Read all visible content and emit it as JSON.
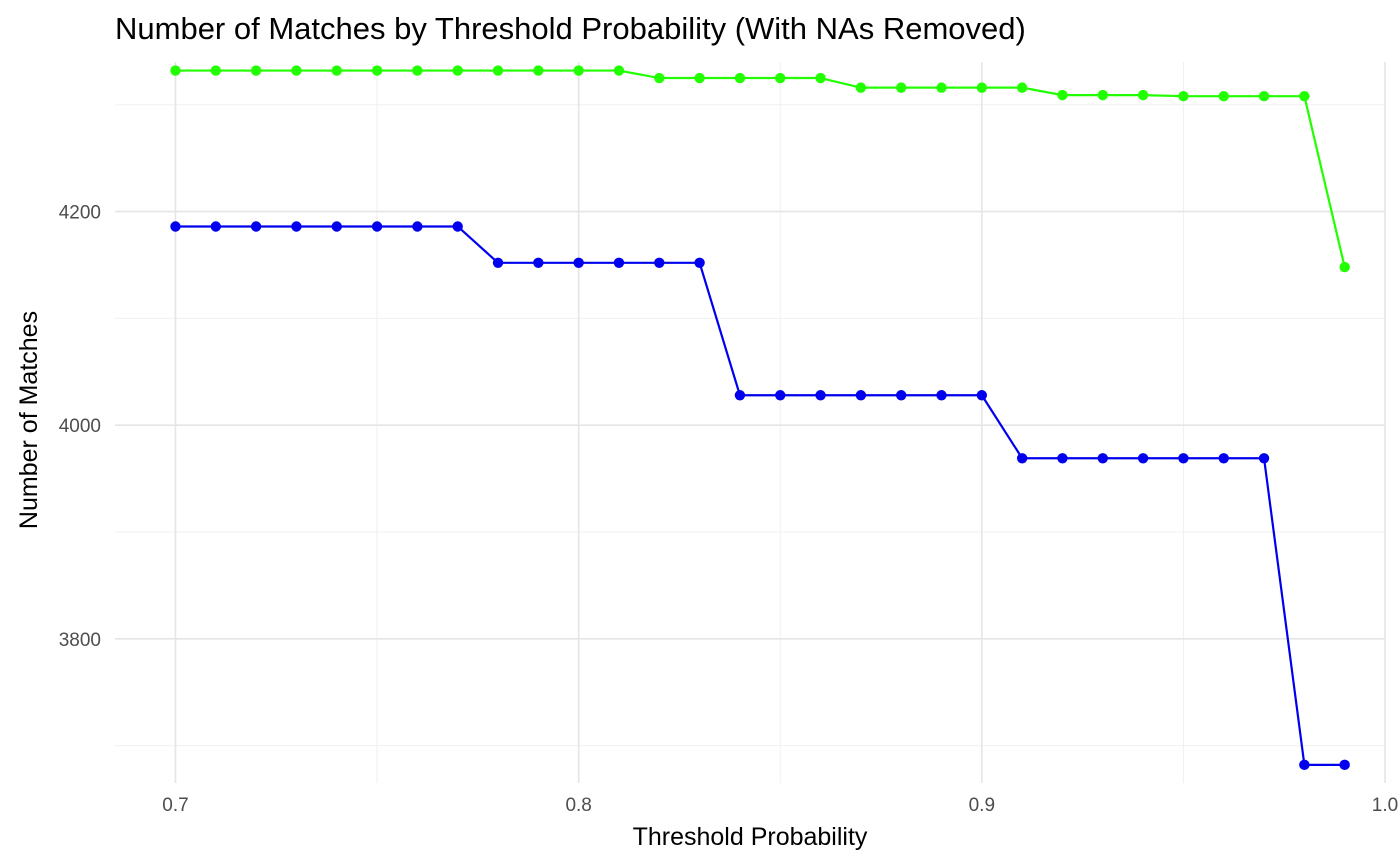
{
  "chart_data": {
    "type": "line",
    "title": "Number of Matches by Threshold Probability (With NAs Removed)",
    "xlabel": "Threshold Probability",
    "ylabel": "Number of Matches",
    "xlim": [
      0.685,
      1.0
    ],
    "ylim": [
      3665,
      4340
    ],
    "x_ticks": [
      0.7,
      0.8,
      0.9,
      1.0
    ],
    "x_tick_labels": [
      "0.7",
      "0.8",
      "0.9",
      "1.0"
    ],
    "y_ticks": [
      3800,
      4000,
      4200
    ],
    "y_tick_labels": [
      "3800",
      "4000",
      "4200"
    ],
    "grid": true,
    "legend": "none",
    "x": [
      0.7,
      0.71,
      0.72,
      0.73,
      0.74,
      0.75,
      0.76,
      0.77,
      0.78,
      0.79,
      0.8,
      0.81,
      0.82,
      0.83,
      0.84,
      0.85,
      0.86,
      0.87,
      0.88,
      0.89,
      0.9,
      0.91,
      0.92,
      0.93,
      0.94,
      0.95,
      0.96,
      0.97,
      0.98,
      0.99
    ],
    "series": [
      {
        "color": "#22ff00",
        "values": [
          4332,
          4332,
          4332,
          4332,
          4332,
          4332,
          4332,
          4332,
          4332,
          4332,
          4332,
          4332,
          4325,
          4325,
          4325,
          4325,
          4325,
          4316,
          4316,
          4316,
          4316,
          4316,
          4309,
          4309,
          4309,
          4308,
          4308,
          4308,
          4308,
          4148
        ]
      },
      {
        "color": "#0000ee",
        "values": [
          4186,
          4186,
          4186,
          4186,
          4186,
          4186,
          4186,
          4186,
          4152,
          4152,
          4152,
          4152,
          4152,
          4152,
          4028,
          4028,
          4028,
          4028,
          4028,
          4028,
          4028,
          3969,
          3969,
          3969,
          3969,
          3969,
          3969,
          3969,
          3682,
          3682
        ]
      }
    ]
  }
}
